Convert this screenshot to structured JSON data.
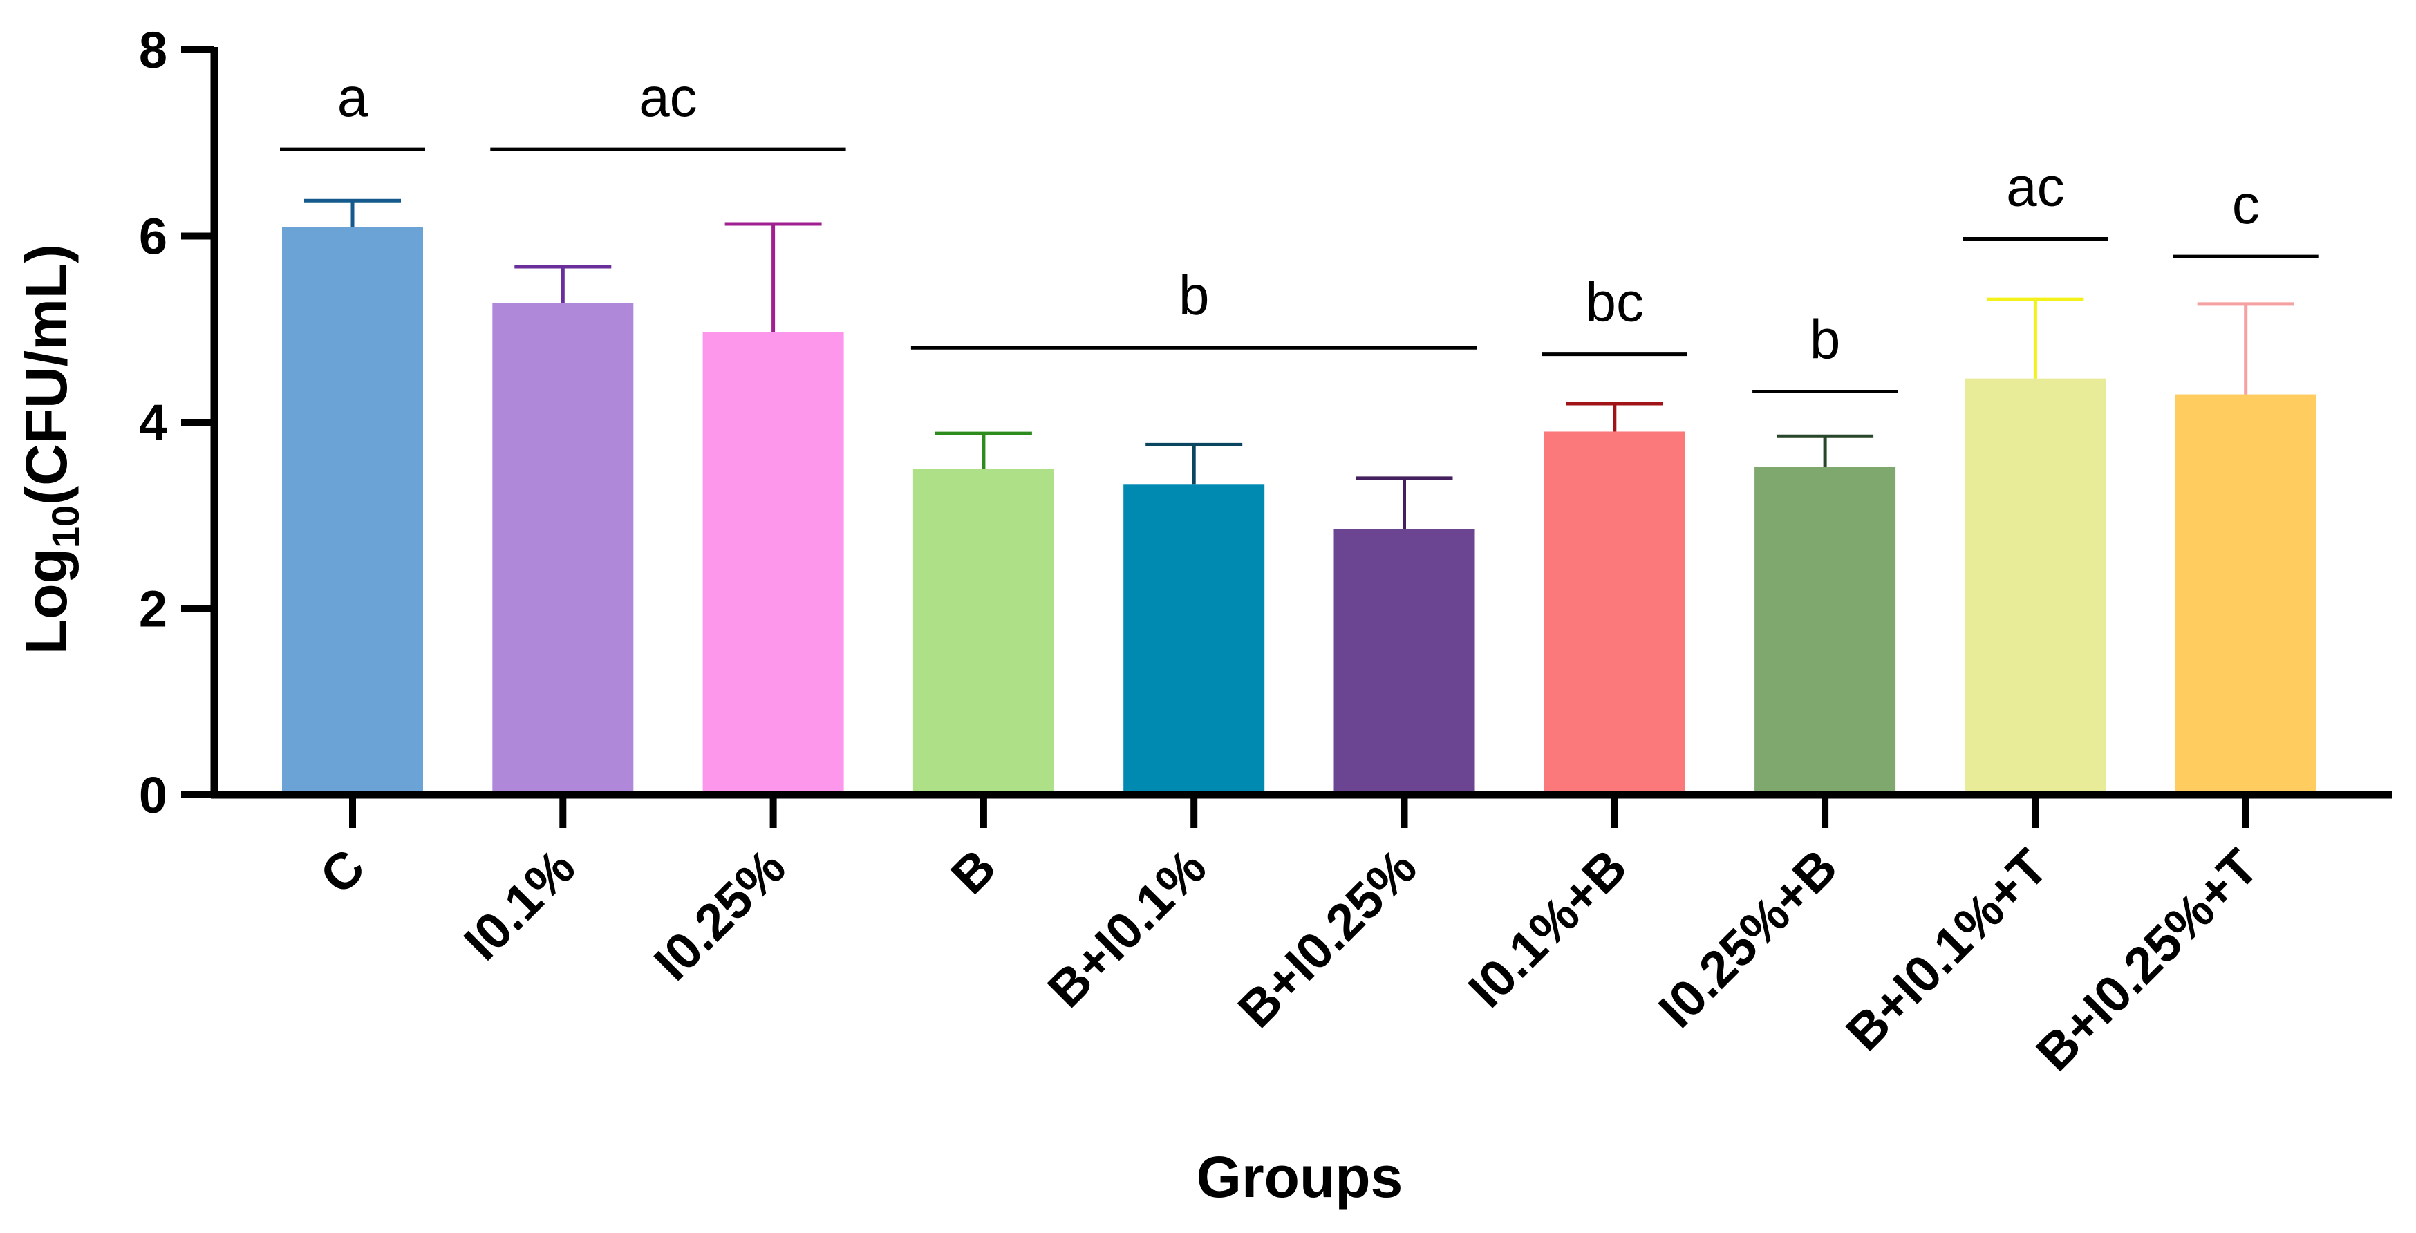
{
  "chart_data": {
    "type": "bar",
    "xlabel": "Groups",
    "ylabel": {
      "base": "Log",
      "subscript": "10",
      "rest": "(CFU/mL)"
    },
    "ylim": [
      0,
      8
    ],
    "yticks": [
      "0",
      "2",
      "4",
      "6",
      "8"
    ],
    "categories": [
      "C",
      "I0.1%",
      "I0.25%",
      "B",
      "B+I0.1%",
      "B+I0.25%",
      "I0.1%+B",
      "I0.25%+B",
      "B+I0.1%+T",
      "B+I0.25%+T"
    ],
    "values": [
      6.1,
      5.28,
      4.97,
      3.5,
      3.33,
      2.85,
      3.9,
      3.52,
      4.47,
      4.3
    ],
    "error_upper": [
      6.38,
      5.67,
      6.13,
      3.88,
      3.76,
      3.4,
      4.2,
      3.85,
      5.32,
      5.27
    ],
    "bar_colors": [
      "#6BA3D6",
      "#B088D9",
      "#FC97EC",
      "#AEE087",
      "#0089B1",
      "#6C4592",
      "#FB787B",
      "#7FA86E",
      "#E8EC98",
      "#FFCC5F"
    ],
    "error_colors": [
      "#145A8C",
      "#6A2F9A",
      "#A0208F",
      "#2E8B1E",
      "#0A4660",
      "#45205E",
      "#A01418",
      "#27462A",
      "#F2F21A",
      "#F6A1A1"
    ],
    "significance": [
      {
        "label": "a",
        "from": 0,
        "to": 0,
        "y": 6.93
      },
      {
        "label": "ac",
        "from": 1,
        "to": 2,
        "y": 6.93
      },
      {
        "label": "b",
        "from": 3,
        "to": 5,
        "y": 4.8
      },
      {
        "label": "bc",
        "from": 6,
        "to": 6,
        "y": 4.73
      },
      {
        "label": "b",
        "from": 7,
        "to": 7,
        "y": 4.33
      },
      {
        "label": "ac",
        "from": 8,
        "to": 8,
        "y": 5.97
      },
      {
        "label": "c",
        "from": 9,
        "to": 9,
        "y": 5.78
      }
    ]
  }
}
